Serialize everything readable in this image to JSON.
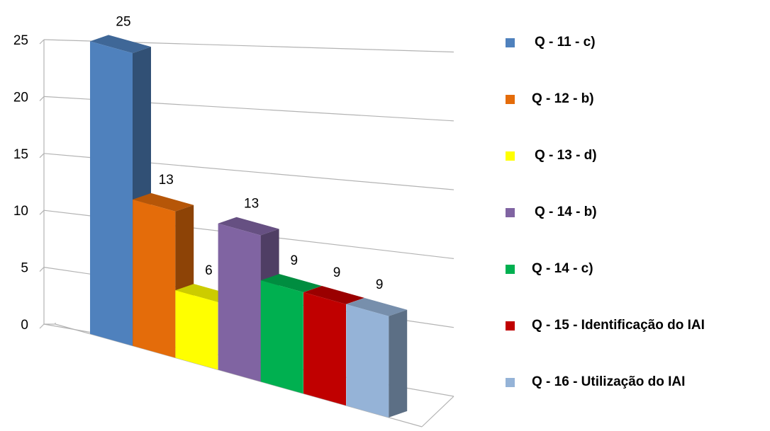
{
  "chart_data": {
    "type": "bar",
    "style": "3d-clustered-column",
    "title": "",
    "xlabel": "",
    "ylabel": "",
    "ylim": [
      0,
      25
    ],
    "yticks": [
      0,
      5,
      10,
      15,
      20,
      25
    ],
    "grid": true,
    "legend_position": "right",
    "series": [
      {
        "name": "Q - 11 - c)",
        "value": 25,
        "label": "25",
        "color": "#4F81BD"
      },
      {
        "name": "Q - 12 - b)",
        "value": 13,
        "label": "13",
        "color": "#E46C0A"
      },
      {
        "name": "Q - 13 - d)",
        "value": 6,
        "label": "6",
        "color": "#FFFF00"
      },
      {
        "name": "Q - 14 - b)",
        "value": 13,
        "label": "13",
        "color": "#8064A2"
      },
      {
        "name": "Q - 14 - c)",
        "value": 9,
        "label": "9",
        "color": "#00B050"
      },
      {
        "name": "Q - 15 - Identificação do IAI",
        "value": 9,
        "label": "9",
        "color": "#C00000"
      },
      {
        "name": "Q - 16 - Utilização do IAI",
        "value": 9,
        "label": "9",
        "color": "#95B3D7"
      }
    ]
  }
}
